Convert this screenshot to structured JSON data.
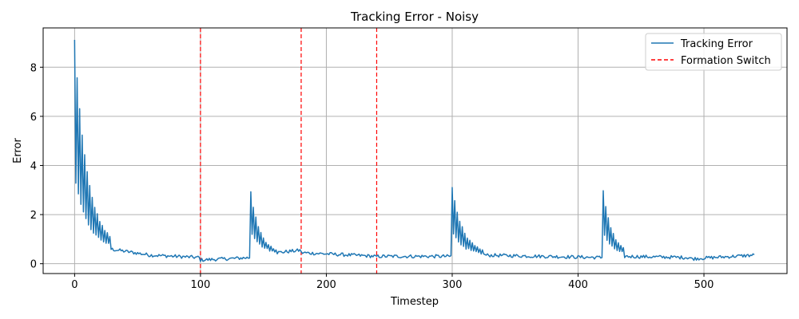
{
  "chart_data": {
    "type": "line",
    "title": "Tracking Error - Noisy",
    "xlabel": "Timestep",
    "ylabel": "Error",
    "xlim": [
      -25,
      566
    ],
    "ylim": [
      -0.4,
      9.6
    ],
    "xticks": [
      0,
      100,
      200,
      300,
      400,
      500
    ],
    "yticks": [
      0,
      2,
      4,
      6,
      8
    ],
    "grid": true,
    "legend_position": "top-right",
    "series": [
      {
        "name": "Tracking Error",
        "color": "#1f77b4",
        "style": "solid",
        "x_range": [
          0,
          540
        ],
        "description": "oscillating decaying error with spikes after formation switches"
      }
    ],
    "formation_switch": {
      "name": "Formation Switch",
      "color": "#ff0000",
      "style": "dashed",
      "x": [
        100,
        180,
        240
      ]
    },
    "events": [
      {
        "start": 0,
        "peak": 9.1,
        "base": 0.6,
        "decay": 10,
        "osc_end": 28
      },
      {
        "start": 140,
        "peak": 2.95,
        "base": 0.45,
        "decay": 7,
        "osc_end": 160
      },
      {
        "start": 300,
        "peak": 3.1,
        "base": 0.35,
        "decay": 9,
        "osc_end": 325
      },
      {
        "start": 420,
        "peak": 3.0,
        "base": 0.35,
        "decay": 7,
        "osc_end": 436
      }
    ],
    "baseline_segments": [
      {
        "x0": 28,
        "x1": 60,
        "y0": 0.6,
        "y1": 0.35
      },
      {
        "x0": 60,
        "x1": 100,
        "y0": 0.35,
        "y1": 0.25
      },
      {
        "x0": 100,
        "x1": 140,
        "y0": 0.15,
        "y1": 0.25
      },
      {
        "x0": 160,
        "x1": 180,
        "y0": 0.45,
        "y1": 0.55
      },
      {
        "x0": 180,
        "x1": 240,
        "y0": 0.45,
        "y1": 0.3
      },
      {
        "x0": 240,
        "x1": 300,
        "y0": 0.3,
        "y1": 0.3
      },
      {
        "x0": 325,
        "x1": 420,
        "y0": 0.35,
        "y1": 0.25
      },
      {
        "x0": 436,
        "x1": 490,
        "y0": 0.3,
        "y1": 0.25
      },
      {
        "x0": 490,
        "x1": 540,
        "y0": 0.2,
        "y1": 0.35
      }
    ]
  }
}
